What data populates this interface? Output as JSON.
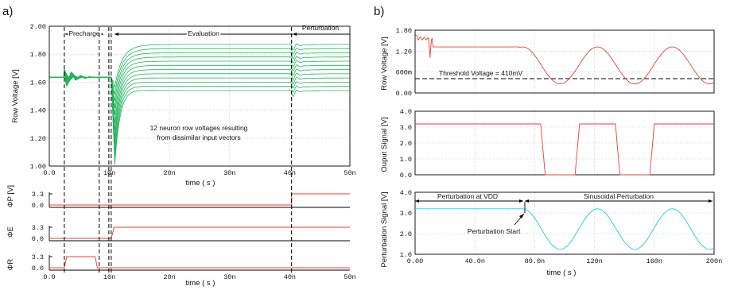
{
  "panel_labels": [
    "a)",
    "b)"
  ],
  "colors": {
    "green": "#21b35a",
    "red": "#e8403a",
    "cyan": "#22c8e6",
    "axis": "#000000"
  },
  "chart_data": [
    {
      "id": "a-main",
      "type": "line",
      "ylabel": "Row Voltage [V]",
      "xlabel": "time ( s )",
      "xlim": [
        0,
        50
      ],
      "ylim": [
        1.0,
        2.0
      ],
      "xticks": [
        "0.0",
        "10n",
        "20n",
        "30n",
        "40n",
        "50n"
      ],
      "yticks": [
        "1.00",
        "1.20",
        "1.40",
        "1.60",
        "1.80",
        "2.00"
      ],
      "phases": [
        "Precharge",
        "Evaluation",
        "Perturbation"
      ],
      "annotation": [
        "12 neuron row voltages resulting",
        "from dissimilar input vectors"
      ],
      "series_finals": [
        1.87,
        1.84,
        1.81,
        1.78,
        1.75,
        1.72,
        1.69,
        1.66,
        1.63,
        1.6,
        1.57,
        1.54
      ],
      "series_minima": [
        1.49,
        1.45,
        1.41,
        1.37,
        1.33,
        1.28,
        1.24,
        1.2,
        1.16,
        1.12,
        1.08,
        1.04
      ],
      "events_ns": {
        "precharge_start": 2.5,
        "precharge_end": 8.3,
        "evaluation_start": 10.3,
        "perturbation_start": 40.3
      },
      "precharge_level": 1.635
    },
    {
      "id": "a-phiP",
      "type": "line",
      "ylabel": "ΦP [V]",
      "xlim": [
        0,
        50
      ],
      "yticks": [
        "3.3",
        "0.0"
      ],
      "x": [
        0,
        40.3,
        40.3,
        50
      ],
      "y": [
        0,
        0,
        3.3,
        3.3
      ]
    },
    {
      "id": "a-phiE",
      "type": "line",
      "ylabel": "ΦE",
      "xlim": [
        0,
        50
      ],
      "yticks": [
        "3.3",
        "0.0"
      ],
      "x": [
        0,
        10.3,
        10.8,
        50
      ],
      "y": [
        0,
        0,
        3.3,
        3.3
      ]
    },
    {
      "id": "a-phiR",
      "type": "line",
      "ylabel": "ΦR",
      "xlabel": "time ( s )",
      "xlim": [
        0,
        50
      ],
      "xticks": [
        "0.0",
        "10n",
        "20n",
        "30n",
        "40n",
        "50n"
      ],
      "yticks": [
        "3.3",
        "0.0"
      ],
      "x": [
        0,
        2.5,
        2.9,
        7.6,
        8.0,
        50
      ],
      "y": [
        0,
        0,
        3.3,
        3.3,
        0,
        0
      ]
    },
    {
      "id": "b-row",
      "type": "line",
      "ylabel": "Row Voltage [V]",
      "xlim": [
        0,
        200
      ],
      "ylim": [
        0,
        1.8
      ],
      "yticks": [
        "1.80",
        "1.20",
        "600m",
        "0.00"
      ],
      "threshold": 0.41,
      "threshold_label": "Threshold Voltage = 410mV",
      "sine": {
        "start": 70,
        "period": 50,
        "offset": 0.79,
        "amplitude": 0.53,
        "min_at": 97
      }
    },
    {
      "id": "b-out",
      "type": "line",
      "ylabel": "Ouput Signal [V]",
      "xlim": [
        0,
        200
      ],
      "ylim": [
        0,
        4
      ],
      "yticks": [
        "4.0",
        "3.0",
        "2.0",
        "1.0",
        "0.0"
      ],
      "high": 3.2,
      "low_intervals_ns": [
        [
          84,
          110
        ],
        [
          134,
          160
        ]
      ]
    },
    {
      "id": "b-pert",
      "type": "line",
      "ylabel": "Perturbation Signal [V]",
      "xlabel": "time ( s )",
      "xlim": [
        0,
        200
      ],
      "ylim": [
        1,
        4
      ],
      "xticks": [
        "0.00",
        "40.0n",
        "80.0n",
        "120n",
        "160n",
        "200n"
      ],
      "yticks": [
        "4.0",
        "3.0",
        "2.0",
        "1.0"
      ],
      "phases": [
        "Perturbation at VDD",
        "Sinusoidal Perturbation"
      ],
      "start_label": "Perturbation Start",
      "vdd": 3.2,
      "sine": {
        "start": 72,
        "period": 50,
        "offset": 2.22,
        "amplitude": 0.98
      }
    }
  ]
}
